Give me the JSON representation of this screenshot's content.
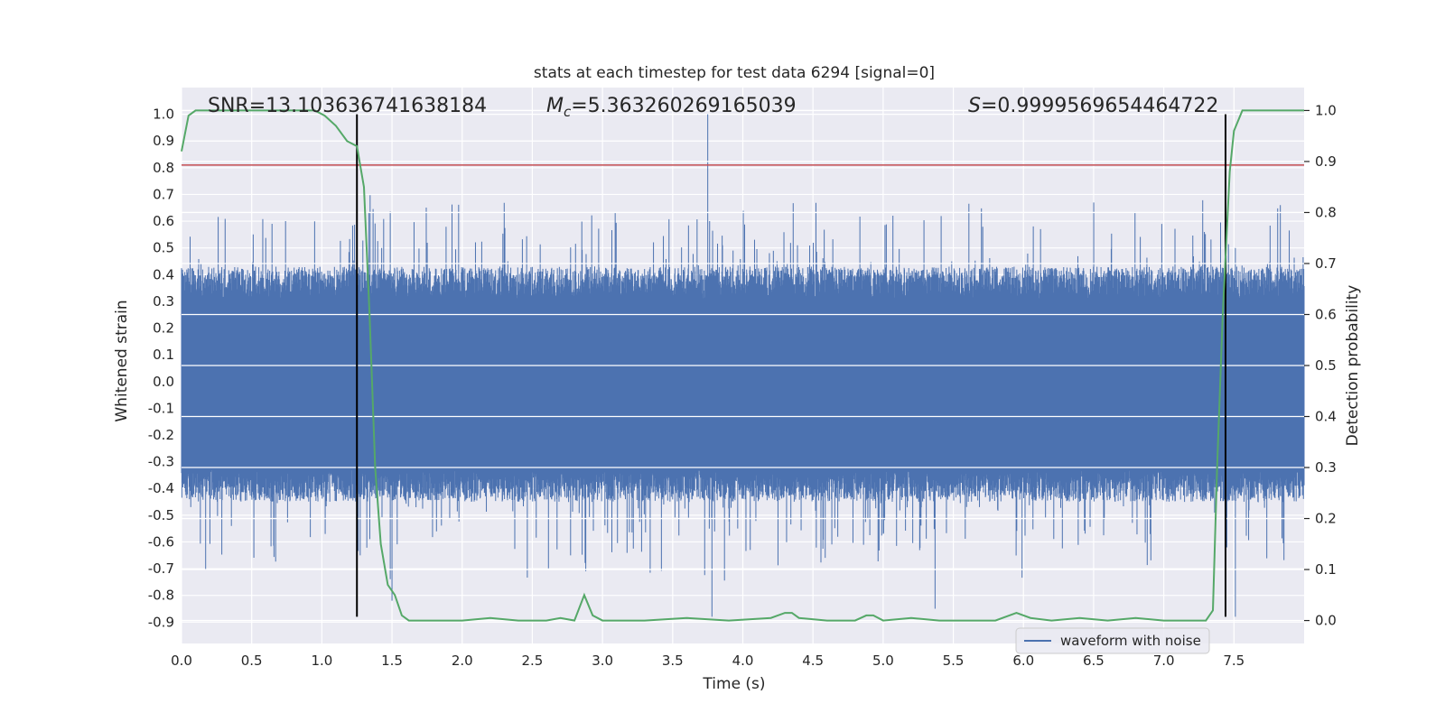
{
  "chart_data": {
    "type": "line",
    "title": "stats at each timestep for test data 6294 [signal=0]",
    "xlabel": "Time (s)",
    "ylabel": "Whitened strain",
    "y2label": "Detection probability",
    "xlim": [
      0.0,
      8.0
    ],
    "ylim": [
      -0.98,
      1.1
    ],
    "y2lim": [
      -0.045,
      1.045
    ],
    "x_ticks": [
      "0.0",
      "0.5",
      "1.0",
      "1.5",
      "2.0",
      "2.5",
      "3.0",
      "3.5",
      "4.0",
      "4.5",
      "5.0",
      "5.5",
      "6.0",
      "6.5",
      "7.0",
      "7.5"
    ],
    "y_ticks": [
      "1.0",
      "0.9",
      "0.8",
      "0.7",
      "0.6",
      "0.5",
      "0.4",
      "0.3",
      "0.2",
      "0.1",
      "0.0",
      "-0.1",
      "-0.2",
      "-0.3",
      "-0.4",
      "-0.5",
      "-0.6",
      "-0.7",
      "-0.8",
      "-0.9"
    ],
    "y2_ticks": [
      "1.0",
      "0.9",
      "0.8",
      "0.7",
      "0.6",
      "0.5",
      "0.4",
      "0.3",
      "0.2",
      "0.1",
      "0.0"
    ],
    "grid": true,
    "legend": {
      "placement": "lower-right",
      "entries": [
        "waveform with noise"
      ]
    },
    "annotations": {
      "snr": "SNR=13.103636741638184",
      "mc": "=5.363260269165039",
      "s": "=0.9999569654464722"
    },
    "threshold_line": {
      "y": 0.81,
      "color": "#c44e52"
    },
    "vertical_markers": {
      "x": [
        1.25,
        7.44
      ],
      "ymin": -0.88,
      "ymax": 1.0,
      "color": "#000000"
    },
    "waveform_envelope": {
      "color": "#4c72b0",
      "dense_band": [
        -0.45,
        0.43
      ],
      "max_peak": 1.0,
      "min_peak": -0.88
    },
    "probability_series": {
      "color": "#55a868",
      "x": [
        0.0,
        0.05,
        0.1,
        0.5,
        0.95,
        1.02,
        1.1,
        1.18,
        1.25,
        1.3,
        1.34,
        1.38,
        1.42,
        1.47,
        1.52,
        1.57,
        1.62,
        1.8,
        2.0,
        2.2,
        2.4,
        2.6,
        2.7,
        2.8,
        2.87,
        2.93,
        3.0,
        3.3,
        3.6,
        3.9,
        4.2,
        4.3,
        4.35,
        4.4,
        4.6,
        4.8,
        4.88,
        4.93,
        5.0,
        5.2,
        5.4,
        5.8,
        5.95,
        6.05,
        6.2,
        6.4,
        6.6,
        6.8,
        7.0,
        7.2,
        7.3,
        7.35,
        7.38,
        7.42,
        7.47,
        7.5,
        7.56,
        7.62,
        7.8,
        8.0
      ],
      "y": [
        0.92,
        0.99,
        1.0,
        1.0,
        1.0,
        0.99,
        0.97,
        0.94,
        0.93,
        0.85,
        0.6,
        0.3,
        0.15,
        0.07,
        0.05,
        0.01,
        0.0,
        0.0,
        0.0,
        0.005,
        0.0,
        0.0,
        0.005,
        0.0,
        0.05,
        0.01,
        0.0,
        0.0,
        0.005,
        0.0,
        0.005,
        0.015,
        0.015,
        0.005,
        0.0,
        0.0,
        0.01,
        0.01,
        0.0,
        0.005,
        0.0,
        0.0,
        0.015,
        0.005,
        0.0,
        0.005,
        0.0,
        0.005,
        0.0,
        0.0,
        0.0,
        0.02,
        0.3,
        0.6,
        0.88,
        0.96,
        1.0,
        1.0,
        1.0,
        1.0
      ]
    }
  }
}
